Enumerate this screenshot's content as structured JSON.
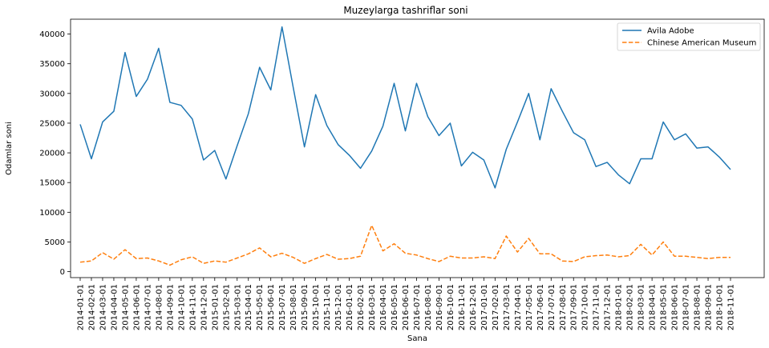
{
  "chart_data": {
    "type": "line",
    "title": "Muzeylarga tashriflar soni",
    "xlabel": "Sana",
    "ylabel": "Odamlar soni",
    "ylim": [
      -1000,
      42500
    ],
    "yticks": [
      0,
      5000,
      10000,
      15000,
      20000,
      25000,
      30000,
      35000,
      40000
    ],
    "legend_position": "top-right",
    "grid": false,
    "x": [
      "2014-01-01",
      "2014-02-01",
      "2014-03-01",
      "2014-04-01",
      "2014-05-01",
      "2014-06-01",
      "2014-07-01",
      "2014-08-01",
      "2014-09-01",
      "2014-10-01",
      "2014-11-01",
      "2014-12-01",
      "2015-01-01",
      "2015-02-01",
      "2015-03-01",
      "2015-04-01",
      "2015-05-01",
      "2015-06-01",
      "2015-07-01",
      "2015-08-01",
      "2015-09-01",
      "2015-10-01",
      "2015-11-01",
      "2015-12-01",
      "2016-01-01",
      "2016-02-01",
      "2016-03-01",
      "2016-04-01",
      "2016-05-01",
      "2016-06-01",
      "2016-07-01",
      "2016-08-01",
      "2016-09-01",
      "2016-10-01",
      "2016-11-01",
      "2016-12-01",
      "2017-01-01",
      "2017-02-01",
      "2017-03-01",
      "2017-04-01",
      "2017-05-01",
      "2017-06-01",
      "2017-07-01",
      "2017-08-01",
      "2017-09-01",
      "2017-10-01",
      "2017-11-01",
      "2017-12-01",
      "2018-01-01",
      "2018-02-01",
      "2018-03-01",
      "2018-04-01",
      "2018-05-01",
      "2018-06-01",
      "2018-07-01",
      "2018-08-01",
      "2018-09-01",
      "2018-10-01",
      "2018-11-01"
    ],
    "series": [
      {
        "name": "Avila Adobe",
        "color": "#1f77b4",
        "style": "solid",
        "values": [
          24800,
          19000,
          25200,
          27000,
          36900,
          29500,
          32400,
          37600,
          28500,
          28000,
          25700,
          18800,
          20400,
          15600,
          21200,
          26600,
          34400,
          30600,
          41200,
          31000,
          21000,
          29800,
          24600,
          21400,
          19600,
          17400,
          20300,
          24500,
          31700,
          23700,
          31700,
          26100,
          22900,
          25000,
          17800,
          20100,
          18800,
          14100,
          20600,
          25200,
          30000,
          22200,
          30800,
          27000,
          23400,
          22200,
          17700,
          18400,
          16300,
          14800,
          19000,
          19000,
          25200,
          22200,
          23200,
          20800,
          21000,
          19300,
          17200
        ]
      },
      {
        "name": "Chinese American Museum",
        "color": "#ff7f0e",
        "style": "dashed",
        "values": [
          1600,
          1800,
          3200,
          2100,
          3700,
          2200,
          2300,
          1800,
          1100,
          2000,
          2500,
          1400,
          1800,
          1600,
          2300,
          3000,
          4000,
          2500,
          3100,
          2400,
          1400,
          2200,
          2900,
          2100,
          2200,
          2600,
          7800,
          3500,
          4700,
          3100,
          2800,
          2200,
          1700,
          2600,
          2300,
          2300,
          2500,
          2200,
          6000,
          3300,
          5600,
          3000,
          3000,
          1800,
          1700,
          2500,
          2700,
          2800,
          2500,
          2700,
          4600,
          2800,
          5000,
          2600,
          2600,
          2400,
          2200,
          2400,
          2400
        ]
      }
    ]
  }
}
